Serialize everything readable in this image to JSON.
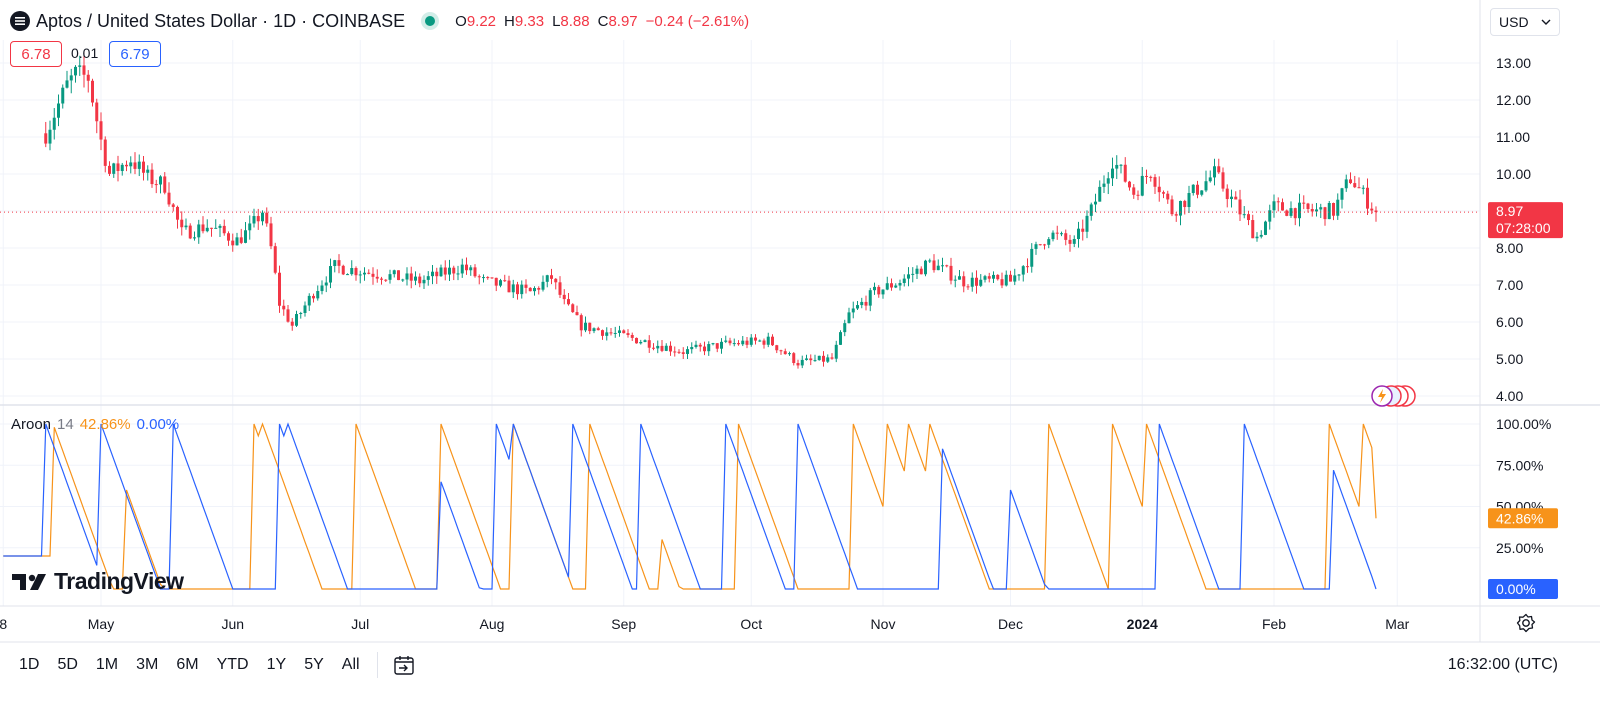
{
  "header": {
    "title": "Aptos / United States Dollar · 1D · COINBASE",
    "ohlc": [
      {
        "key": "O",
        "value": "9.22"
      },
      {
        "key": "H",
        "value": "9.33"
      },
      {
        "key": "L",
        "value": "8.88"
      },
      {
        "key": "C",
        "value": "8.97"
      }
    ],
    "change": "−0.24 (−2.61%)",
    "bid": "6.78",
    "spread": "0.01",
    "ask": "6.79",
    "currency": "USD"
  },
  "colors": {
    "up": "#089981",
    "down": "#F23645",
    "aroon_up": "#F7931A",
    "aroon_down": "#2962FF",
    "grid": "#F0F3FA"
  },
  "price_labels": {
    "last_price": "8.97",
    "countdown": "07:28:00"
  },
  "aroon": {
    "label": "Aroon",
    "length": "14",
    "up_value": "42.86%",
    "down_value": "0.00%"
  },
  "brand": "TradingView",
  "toolbar": {
    "timeframes": [
      "1D",
      "5D",
      "1M",
      "3M",
      "6M",
      "YTD",
      "1Y",
      "5Y",
      "All"
    ],
    "clock": "16:32:00 (UTC)"
  },
  "chart_data": [
    {
      "type": "candlestick",
      "title": "Aptos / United States Dollar · 1D · COINBASE",
      "x_ticks": [
        "8",
        "May",
        "Jun",
        "Jul",
        "Aug",
        "Sep",
        "Oct",
        "Nov",
        "Dec",
        "2024",
        "Feb",
        "Mar"
      ],
      "y_ticks": [
        "13.00",
        "12.00",
        "11.00",
        "10.00",
        "9.00",
        "8.00",
        "7.00",
        "6.00",
        "5.00",
        "4.00"
      ],
      "ylim": [
        3.8,
        14.3
      ],
      "grid": true,
      "last": 8.97,
      "anchors": [
        {
          "date": "2023-04-18",
          "close": 11.1
        },
        {
          "date": "2023-04-23",
          "close": 12.4
        },
        {
          "date": "2023-04-25",
          "close": 12.7
        },
        {
          "date": "2023-04-28",
          "close": 12.6
        },
        {
          "date": "2023-05-01",
          "close": 10.9
        },
        {
          "date": "2023-05-03",
          "close": 10.0
        },
        {
          "date": "2023-05-08",
          "close": 10.4
        },
        {
          "date": "2023-05-12",
          "close": 9.9
        },
        {
          "date": "2023-05-16",
          "close": 9.7
        },
        {
          "date": "2023-05-20",
          "close": 8.4
        },
        {
          "date": "2023-05-26",
          "close": 8.6
        },
        {
          "date": "2023-06-02",
          "close": 8.2
        },
        {
          "date": "2023-06-05",
          "close": 8.5
        },
        {
          "date": "2023-06-08",
          "close": 9.0
        },
        {
          "date": "2023-06-10",
          "close": 8.0
        },
        {
          "date": "2023-06-12",
          "close": 6.5
        },
        {
          "date": "2023-06-15",
          "close": 5.9
        },
        {
          "date": "2023-06-20",
          "close": 6.8
        },
        {
          "date": "2023-06-25",
          "close": 7.5
        },
        {
          "date": "2023-07-05",
          "close": 7.3
        },
        {
          "date": "2023-07-15",
          "close": 7.1
        },
        {
          "date": "2023-07-25",
          "close": 7.5
        },
        {
          "date": "2023-07-30",
          "close": 7.1
        },
        {
          "date": "2023-08-10",
          "close": 6.8
        },
        {
          "date": "2023-08-15",
          "close": 7.2
        },
        {
          "date": "2023-08-18",
          "close": 6.5
        },
        {
          "date": "2023-08-22",
          "close": 5.9
        },
        {
          "date": "2023-09-05",
          "close": 5.5
        },
        {
          "date": "2023-09-15",
          "close": 5.2
        },
        {
          "date": "2023-09-25",
          "close": 5.4
        },
        {
          "date": "2023-10-05",
          "close": 5.5
        },
        {
          "date": "2023-10-12",
          "close": 4.9
        },
        {
          "date": "2023-10-20",
          "close": 5.0
        },
        {
          "date": "2023-10-24",
          "close": 6.2
        },
        {
          "date": "2023-10-30",
          "close": 6.8
        },
        {
          "date": "2023-11-05",
          "close": 7.1
        },
        {
          "date": "2023-11-12",
          "close": 7.6
        },
        {
          "date": "2023-11-20",
          "close": 7.1
        },
        {
          "date": "2023-12-01",
          "close": 7.1
        },
        {
          "date": "2023-12-10",
          "close": 8.4
        },
        {
          "date": "2023-12-16",
          "close": 8.1
        },
        {
          "date": "2023-12-20",
          "close": 9.0
        },
        {
          "date": "2023-12-25",
          "close": 10.4
        },
        {
          "date": "2023-12-30",
          "close": 9.5
        },
        {
          "date": "2024-01-03",
          "close": 10.1
        },
        {
          "date": "2024-01-08",
          "close": 9.0
        },
        {
          "date": "2024-01-13",
          "close": 9.5
        },
        {
          "date": "2024-01-18",
          "close": 10.0
        },
        {
          "date": "2024-01-28",
          "close": 8.3
        },
        {
          "date": "2024-02-01",
          "close": 9.1
        },
        {
          "date": "2024-02-08",
          "close": 9.0
        },
        {
          "date": "2024-02-15",
          "close": 9.0
        },
        {
          "date": "2024-02-19",
          "close": 9.9
        },
        {
          "date": "2024-02-25",
          "close": 8.97
        }
      ]
    },
    {
      "type": "line",
      "title": "Aroon 14",
      "ylim": [
        0,
        100
      ],
      "y_ticks": [
        "100.00%",
        "75.00%",
        "50.00%",
        "25.00%"
      ],
      "series": [
        {
          "name": "Aroon Up",
          "color": "#F7931A",
          "last": 42.86,
          "peaks": [
            [
              "2023-04-20",
              98
            ],
            [
              "2023-05-07",
              60
            ],
            [
              "2023-06-06",
              100
            ],
            [
              "2023-06-08",
              100
            ],
            [
              "2023-06-30",
              100
            ],
            [
              "2023-07-20",
              100
            ],
            [
              "2023-08-06",
              100
            ],
            [
              "2023-08-24",
              100
            ],
            [
              "2023-09-10",
              30
            ],
            [
              "2023-09-28",
              100
            ],
            [
              "2023-10-25",
              100
            ],
            [
              "2023-11-02",
              100
            ],
            [
              "2023-11-07",
              100
            ],
            [
              "2023-11-12",
              100
            ],
            [
              "2023-12-10",
              100
            ],
            [
              "2023-12-25",
              100
            ],
            [
              "2024-01-02",
              100
            ],
            [
              "2024-02-14",
              100
            ],
            [
              "2024-02-22",
              100
            ]
          ]
        },
        {
          "name": "Aroon Down",
          "color": "#2962FF",
          "last": 0.0,
          "peaks": [
            [
              "2023-04-18",
              100
            ],
            [
              "2023-05-01",
              100
            ],
            [
              "2023-05-18",
              100
            ],
            [
              "2023-06-12",
              100
            ],
            [
              "2023-06-14",
              100
            ],
            [
              "2023-07-20",
              65
            ],
            [
              "2023-08-02",
              100
            ],
            [
              "2023-08-06",
              100
            ],
            [
              "2023-08-20",
              100
            ],
            [
              "2023-09-05",
              100
            ],
            [
              "2023-09-25",
              100
            ],
            [
              "2023-10-12",
              100
            ],
            [
              "2023-11-15",
              85
            ],
            [
              "2023-12-01",
              60
            ],
            [
              "2024-01-05",
              100
            ],
            [
              "2024-01-25",
              100
            ],
            [
              "2024-02-15",
              72
            ]
          ]
        }
      ]
    }
  ]
}
